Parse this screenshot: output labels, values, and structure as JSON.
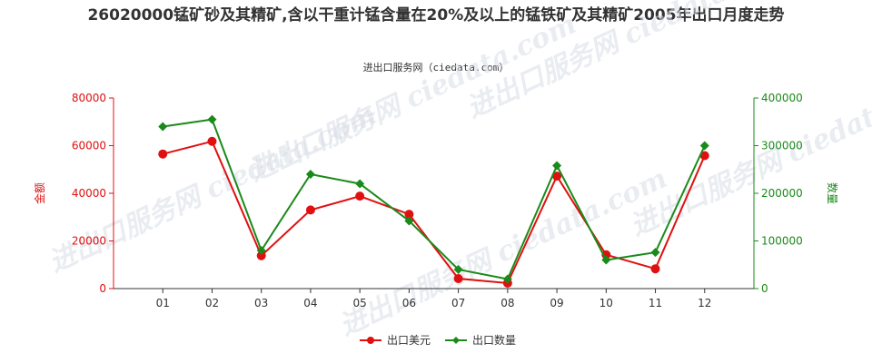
{
  "chart_data": {
    "type": "line",
    "title": "26020000锰矿砂及其精矿,含以干重计锰含量在20%及以上的锰铁矿及其精矿2005年出口月度走势",
    "subtitle": "进出口服务网（ciedata.com）",
    "watermark": "进出口服务网 ciedata.com",
    "categories": [
      "01",
      "02",
      "03",
      "04",
      "05",
      "06",
      "07",
      "08",
      "09",
      "10",
      "11",
      "12"
    ],
    "left_axis": {
      "label": "金额",
      "ylim": [
        0,
        80000
      ],
      "ticks": [
        0,
        20000,
        40000,
        60000,
        80000
      ],
      "color": "#e01010"
    },
    "right_axis": {
      "label": "数量",
      "ylim": [
        0,
        400000
      ],
      "ticks": [
        0,
        100000,
        200000,
        300000,
        400000
      ],
      "color": "#1a8a1a"
    },
    "series": [
      {
        "name": "出口美元",
        "axis": "left",
        "color": "#e01010",
        "marker": "circle",
        "values": [
          56500,
          61800,
          13800,
          33000,
          38800,
          31200,
          4200,
          2300,
          47200,
          14200,
          8300,
          55800
        ]
      },
      {
        "name": "出口数量",
        "axis": "right",
        "color": "#1a8a1a",
        "marker": "diamond",
        "values": [
          340000,
          355000,
          80000,
          240000,
          220000,
          142000,
          40000,
          20000,
          258000,
          60000,
          76000,
          300000
        ]
      }
    ],
    "legend_position": "bottom-center",
    "grid": false
  }
}
